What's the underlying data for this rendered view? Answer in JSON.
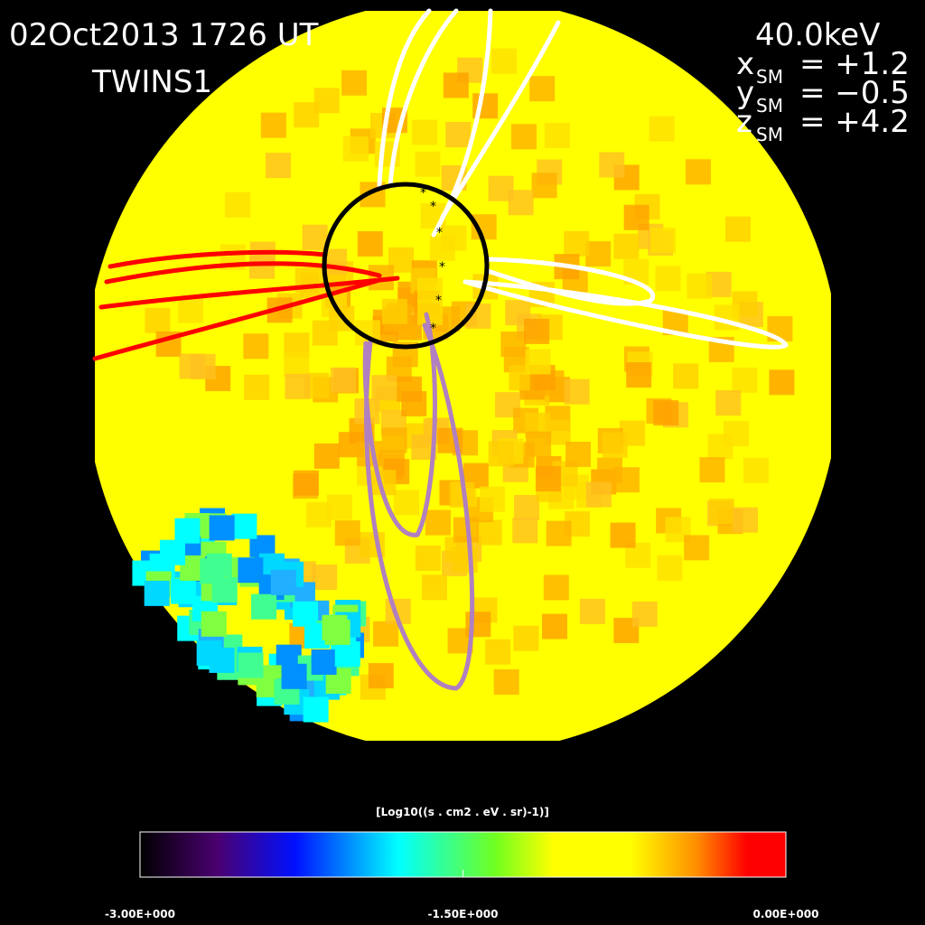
{
  "header": {
    "title": "02Oct2013 1726 UT",
    "spacecraft": "TWINS1",
    "energy": "40.0keV",
    "coords": [
      {
        "axis": "x",
        "sub": "SM",
        "value": "= +1.2"
      },
      {
        "axis": "y",
        "sub": "SM",
        "value": "= −0.5"
      },
      {
        "axis": "z",
        "sub": "SM",
        "value": "= +4.2"
      }
    ]
  },
  "colorbar": {
    "label": "[Log10((s . cm2 . eV . sr)-1)]",
    "range": [
      -3,
      0
    ],
    "ticks": [
      {
        "value": -3,
        "label": "-3.00E+000"
      },
      {
        "value": -1.5,
        "label": "-1.50E+000"
      },
      {
        "value": 0,
        "label": "0.00E+000"
      }
    ]
  }
}
